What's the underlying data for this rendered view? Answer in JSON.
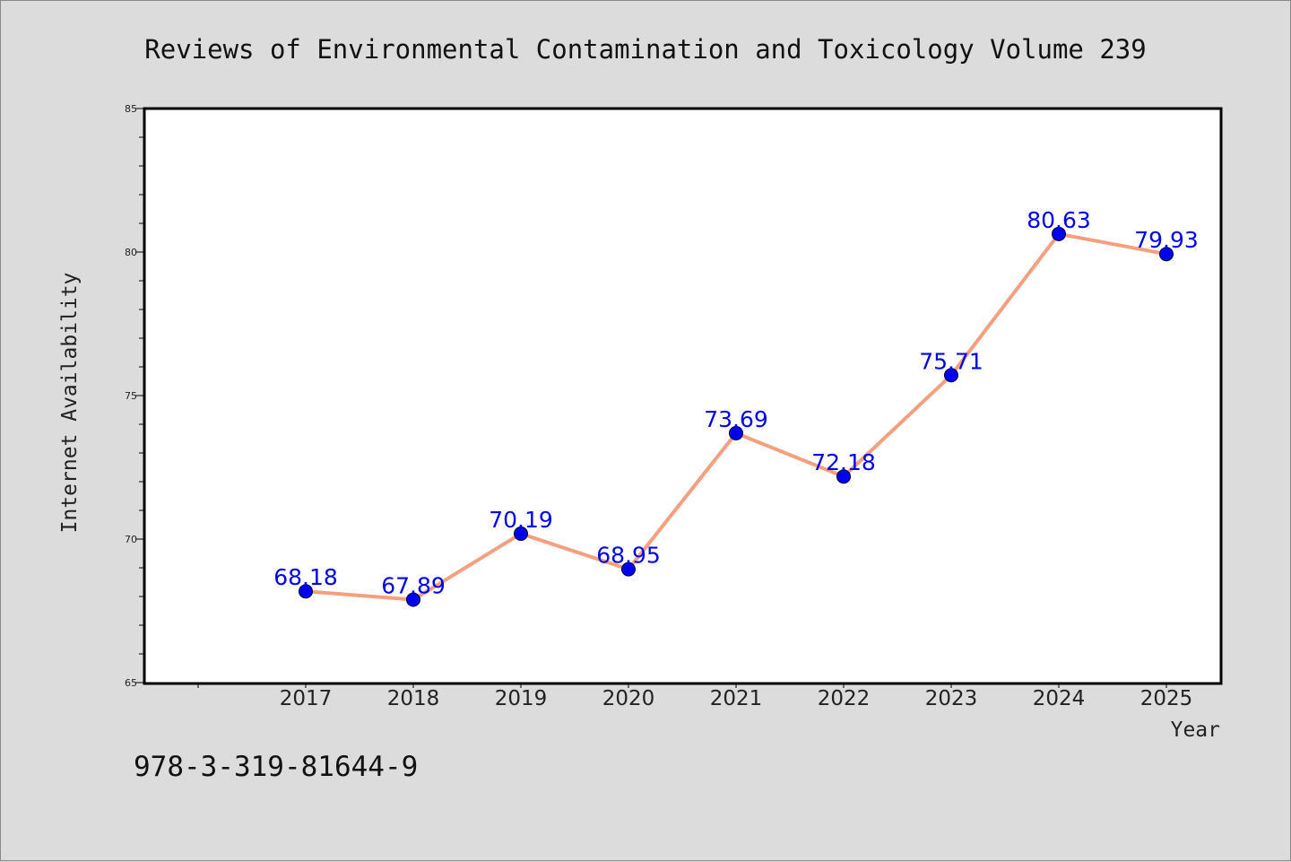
{
  "colors": {
    "background": "#dcdcdc",
    "plot_background": "#ffffff",
    "line": "#f4a07e",
    "marker": "#0000ee",
    "data_label": "#0000ee",
    "axis": "#000000"
  },
  "chart_data": {
    "type": "line",
    "title": "Reviews of Environmental Contamination and Toxicology Volume 239",
    "xlabel": "Year",
    "ylabel": "Internet Availability",
    "categories": [
      "2017",
      "2018",
      "2019",
      "2020",
      "2021",
      "2022",
      "2023",
      "2024",
      "2025"
    ],
    "series": [
      {
        "values": [
          68.18,
          67.89,
          70.19,
          68.95,
          73.69,
          72.18,
          75.71,
          80.63,
          79.93
        ],
        "labels": [
          "68.18",
          "67.89",
          "70.19",
          "68.95",
          "73.69",
          "72.18",
          "75.71",
          "80.63",
          "79.93"
        ]
      }
    ],
    "ylim": [
      65,
      85
    ],
    "yticks": [
      "65",
      "70",
      "75",
      "80",
      "85"
    ],
    "grid": false,
    "markers": "filled-circle"
  },
  "footer": {
    "isbn": "978-3-319-81644-9"
  }
}
